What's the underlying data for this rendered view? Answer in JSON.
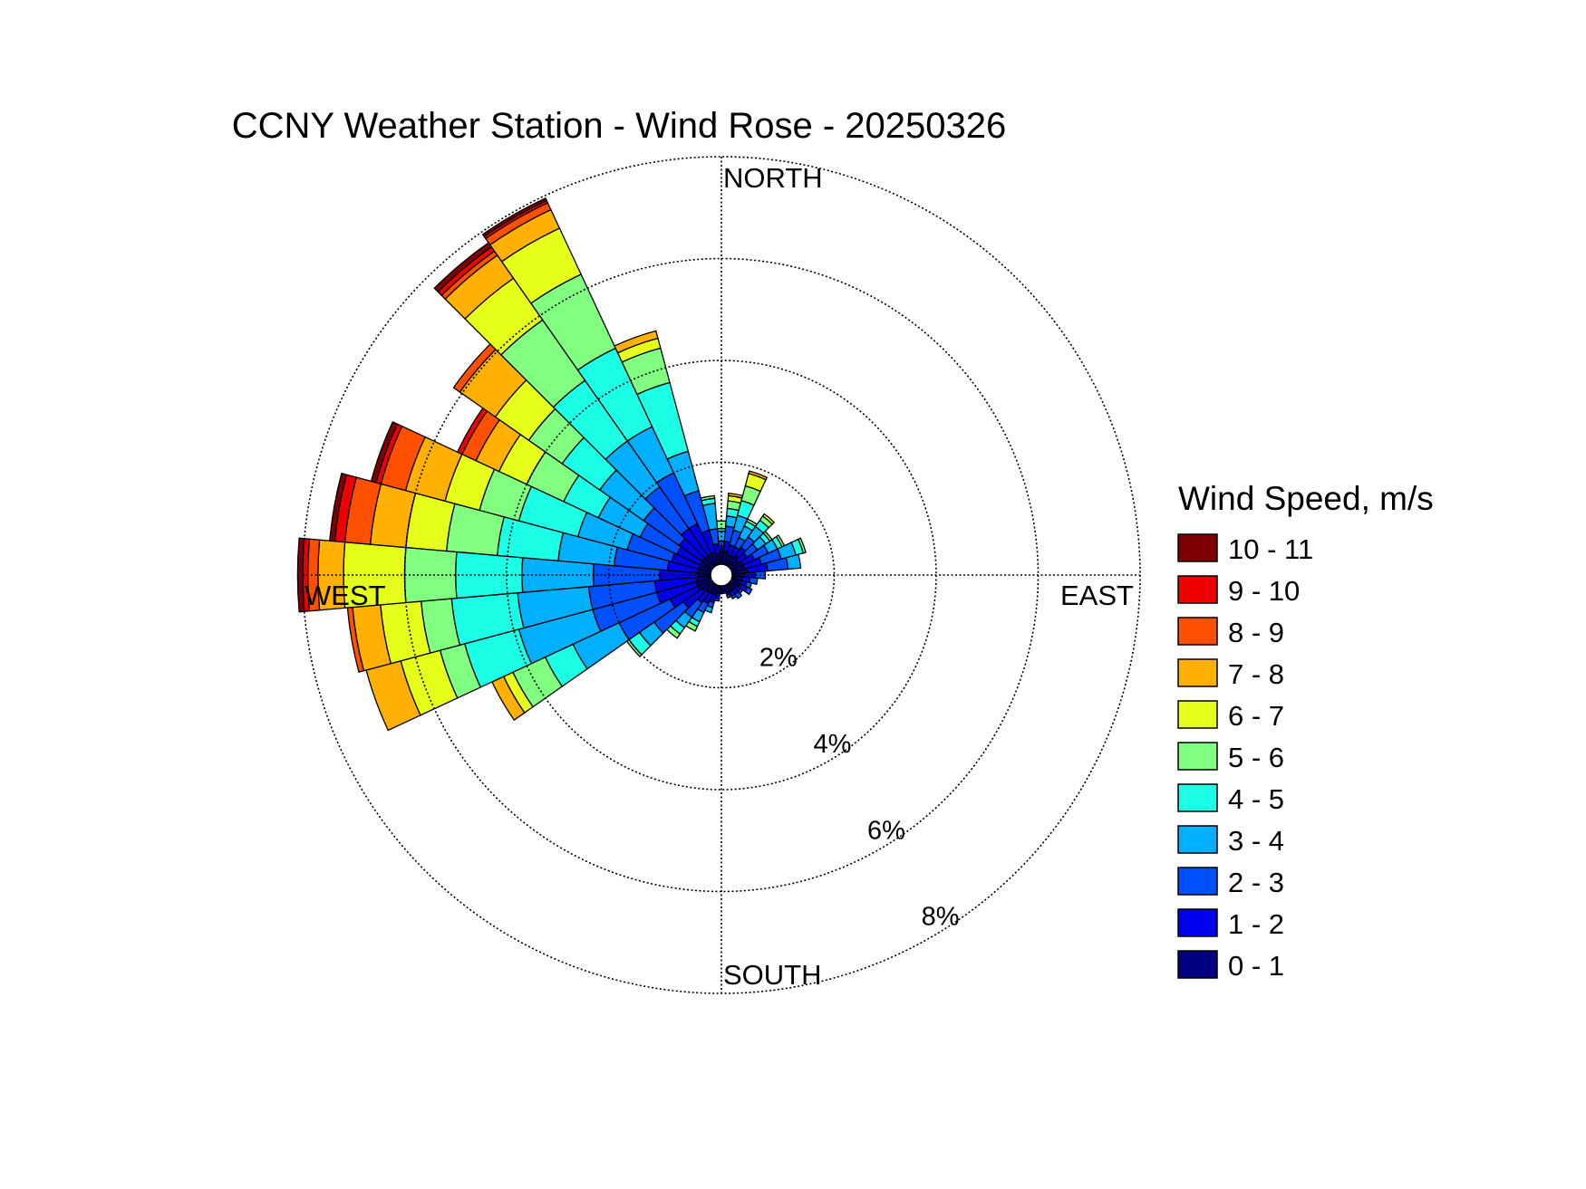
{
  "chart_data": {
    "type": "windrose",
    "title": "CCNY Weather Station - Wind Rose - 20250326",
    "compass_labels": {
      "north": "NORTH",
      "south": "SOUTH",
      "east": "EAST",
      "west": "WEST"
    },
    "radial_unit": "%",
    "rings": [
      2,
      4,
      6,
      8
    ],
    "ring_labels": [
      "2%",
      "4%",
      "6%",
      "8%"
    ],
    "r_max": 8,
    "grid": true,
    "legend": {
      "title": "Wind Speed, m/s",
      "position": "right",
      "bins": [
        {
          "label": "10 - 11",
          "color": "#7f0000"
        },
        {
          "label": "9 - 10",
          "color": "#ee0000"
        },
        {
          "label": "8 - 9",
          "color": "#ff5000"
        },
        {
          "label": "7 - 8",
          "color": "#ffb000"
        },
        {
          "label": "6 - 7",
          "color": "#e6ff1a"
        },
        {
          "label": "5 - 6",
          "color": "#80ff80"
        },
        {
          "label": "4 - 5",
          "color": "#1affe6"
        },
        {
          "label": "3 - 4",
          "color": "#00b0ff"
        },
        {
          "label": "2 - 3",
          "color": "#0050ff"
        },
        {
          "label": "1 - 2",
          "color": "#0000ee"
        },
        {
          "label": "0 - 1",
          "color": "#000080"
        }
      ]
    },
    "speed_bins": [
      "0 - 1",
      "1 - 2",
      "2 - 3",
      "3 - 4",
      "4 - 5",
      "5 - 6",
      "6 - 7",
      "7 - 8",
      "8 - 9",
      "9 - 10",
      "10 - 11"
    ],
    "sector_width_deg": 10,
    "directions": [
      {
        "dir": 0,
        "cumulative": [
          0.25,
          0.35,
          0.45,
          0.65,
          0.7,
          0.85
        ]
      },
      {
        "dir": 10,
        "cumulative": [
          0.25,
          0.45,
          0.75,
          0.95,
          1.1,
          1.25,
          1.35,
          1.4
        ]
      },
      {
        "dir": 20,
        "cumulative": [
          0.2,
          0.4,
          0.7,
          1.0,
          1.3,
          1.6,
          1.85,
          1.9
        ]
      },
      {
        "dir": 30,
        "cumulative": [
          0.2,
          0.4,
          0.6,
          0.85,
          0.95,
          1.0
        ]
      },
      {
        "dir": 40,
        "cumulative": [
          0.25,
          0.45,
          0.7,
          0.95,
          1.1,
          1.2,
          1.25
        ]
      },
      {
        "dir": 50,
        "cumulative": [
          0.2,
          0.4,
          0.65,
          0.85,
          0.95,
          1.0
        ]
      },
      {
        "dir": 60,
        "cumulative": [
          0.25,
          0.5,
          0.8,
          1.0,
          1.1,
          1.15
        ]
      },
      {
        "dir": 70,
        "cumulative": [
          0.25,
          0.6,
          1.0,
          1.3,
          1.45,
          1.5
        ]
      },
      {
        "dir": 80,
        "cumulative": [
          0.3,
          0.7,
          1.1,
          1.35
        ]
      },
      {
        "dir": 90,
        "cumulative": [
          0.25,
          0.45,
          0.65
        ]
      },
      {
        "dir": 100,
        "cumulative": [
          0.2,
          0.35,
          0.5
        ]
      },
      {
        "dir": 110,
        "cumulative": [
          0.2,
          0.3,
          0.4
        ]
      },
      {
        "dir": 120,
        "cumulative": [
          0.2,
          0.35,
          0.45
        ]
      },
      {
        "dir": 130,
        "cumulative": [
          0.15,
          0.25,
          0.3
        ]
      },
      {
        "dir": 140,
        "cumulative": [
          0.15,
          0.25,
          0.35
        ]
      },
      {
        "dir": 150,
        "cumulative": [
          0.15,
          0.25,
          0.3
        ]
      },
      {
        "dir": 160,
        "cumulative": [
          0.15,
          0.2,
          0.25
        ]
      },
      {
        "dir": 170,
        "cumulative": [
          0.1,
          0.15
        ]
      },
      {
        "dir": 180,
        "cumulative": [
          0.1,
          0.15
        ]
      },
      {
        "dir": 190,
        "cumulative": [
          0.15,
          0.25,
          0.3
        ]
      },
      {
        "dir": 200,
        "cumulative": [
          0.2,
          0.35,
          0.45,
          0.55
        ]
      },
      {
        "dir": 210,
        "cumulative": [
          0.2,
          0.4,
          0.6,
          0.8,
          0.9,
          1.0
        ]
      },
      {
        "dir": 220,
        "cumulative": [
          0.2,
          0.45,
          0.8,
          1.05,
          1.2,
          1.3
        ]
      },
      {
        "dir": 230,
        "cumulative": [
          0.25,
          0.7,
          1.4,
          1.75,
          2.0,
          2.05
        ]
      },
      {
        "dir": 240,
        "cumulative": [
          0.3,
          0.9,
          2.0,
          3.0,
          3.6,
          4.3,
          4.5,
          4.75
        ]
      },
      {
        "dir": 250,
        "cumulative": [
          0.3,
          1.1,
          2.4,
          3.9,
          5.0,
          5.5,
          6.3,
          7.0
        ]
      },
      {
        "dir": 260,
        "cumulative": [
          0.3,
          1.1,
          2.4,
          3.8,
          5.1,
          5.7,
          6.5,
          7.05,
          7.15
        ]
      },
      {
        "dir": 270,
        "cumulative": [
          0.25,
          1.0,
          2.3,
          3.7,
          5.0,
          6.0,
          7.2,
          7.7,
          7.9,
          8.0,
          8.1
        ]
      },
      {
        "dir": 280,
        "cumulative": [
          0.25,
          0.85,
          1.9,
          3.0,
          4.2,
          5.2,
          6.0,
          6.7,
          7.2,
          7.4,
          7.5
        ]
      },
      {
        "dir": 290,
        "cumulative": [
          0.25,
          0.8,
          1.7,
          2.7,
          3.9,
          4.7,
          5.4,
          6.2,
          6.7,
          6.8,
          6.9
        ]
      },
      {
        "dir": 300,
        "cumulative": [
          0.25,
          0.75,
          1.55,
          2.45,
          3.2,
          4.0,
          4.6,
          5.1,
          5.4,
          5.5
        ]
      },
      {
        "dir": 310,
        "cumulative": [
          0.25,
          0.8,
          1.65,
          2.7,
          3.6,
          4.4,
          5.2,
          6.05,
          6.2
        ]
      },
      {
        "dir": 320,
        "cumulative": [
          0.25,
          0.9,
          1.9,
          3.0,
          4.45,
          5.9,
          6.9,
          7.45,
          7.55,
          7.65,
          7.75
        ]
      },
      {
        "dir": 330,
        "cumulative": [
          0.25,
          0.9,
          2.0,
          3.0,
          4.7,
          6.3,
          7.3,
          7.7,
          7.85,
          7.9,
          7.95
        ]
      },
      {
        "dir": 340,
        "cumulative": [
          0.25,
          0.7,
          1.5,
          2.3,
          3.7,
          4.4,
          4.6,
          4.75
        ]
      },
      {
        "dir": 350,
        "cumulative": [
          0.2,
          0.4,
          0.7,
          1.2,
          1.3,
          1.35
        ]
      }
    ]
  }
}
